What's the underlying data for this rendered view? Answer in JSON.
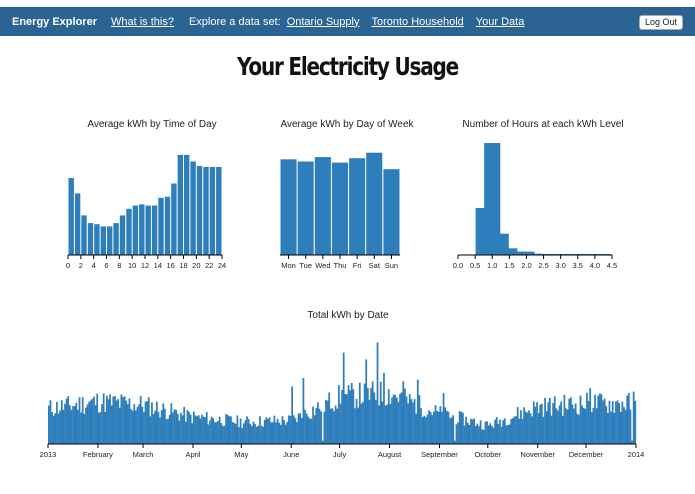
{
  "navbar": {
    "brand": "Energy Explorer",
    "about_link": "What is this?",
    "explore_label": "Explore a data set:",
    "datasets": [
      "Ontario Supply",
      "Toronto Household",
      "Your Data"
    ],
    "logout_label": "Log Out"
  },
  "page": {
    "title": "Your Electricity Usage"
  },
  "colors": {
    "bar": "#2f7ebc",
    "navbar": "#2b6492"
  },
  "chart_data": [
    {
      "type": "bar",
      "title": "Average kWh by Time of Day",
      "x_tick_labels": [
        "0",
        "2",
        "4",
        "6",
        "8",
        "10",
        "12",
        "14",
        "16",
        "18",
        "20",
        "22",
        "24"
      ],
      "categories": [
        0,
        1,
        2,
        3,
        4,
        5,
        6,
        7,
        8,
        9,
        10,
        11,
        12,
        13,
        14,
        15,
        16,
        17,
        18,
        19,
        20,
        21,
        22,
        23
      ],
      "values": [
        0.7,
        0.56,
        0.36,
        0.29,
        0.28,
        0.26,
        0.26,
        0.29,
        0.36,
        0.42,
        0.45,
        0.46,
        0.45,
        0.45,
        0.52,
        0.53,
        0.65,
        0.91,
        0.91,
        0.85,
        0.81,
        0.8,
        0.8,
        0.8
      ],
      "ylim": [
        0,
        1.0
      ],
      "grid": false
    },
    {
      "type": "bar",
      "title": "Average kWh by Day of Week",
      "categories": [
        "Mon",
        "Tue",
        "Wed",
        "Thu",
        "Fri",
        "Sat",
        "Sun"
      ],
      "values": [
        0.87,
        0.85,
        0.89,
        0.84,
        0.88,
        0.93,
        0.78
      ],
      "ylim": [
        0,
        1.0
      ],
      "grid": false
    },
    {
      "type": "bar",
      "title": "Number of Hours at each kWh Level",
      "x_tick_labels": [
        "0.0",
        "0.5",
        "1.0",
        "1.5",
        "2.0",
        "2.5",
        "3.0",
        "3.5",
        "4.0",
        "4.5"
      ],
      "bins_start": [
        0.0,
        0.25,
        0.5,
        0.75,
        1.0,
        1.25,
        1.5,
        1.75,
        2.0,
        2.25,
        2.5,
        2.75,
        3.0,
        3.25,
        3.5,
        3.75,
        4.0,
        4.25
      ],
      "values": [
        0,
        0,
        0.42,
        1.0,
        0.19,
        0.06,
        0.03,
        0.03,
        0.012,
        0.008,
        0.005,
        0.004,
        0.003,
        0.002,
        0.002,
        0.001,
        0.001,
        0
      ],
      "xlim": [
        0,
        4.5
      ],
      "grid": false
    },
    {
      "type": "bar",
      "title": "Total kWh by Date",
      "x_tick_labels": [
        "2013",
        "February",
        "March",
        "April",
        "May",
        "June",
        "July",
        "August",
        "September",
        "October",
        "November",
        "December",
        "2014"
      ],
      "x_tick_dates": [
        "2013-01-01",
        "2013-02-01",
        "2013-03-01",
        "2013-04-01",
        "2013-05-01",
        "2013-06-01",
        "2013-07-01",
        "2013-08-01",
        "2013-09-01",
        "2013-10-01",
        "2013-11-01",
        "2013-12-01",
        "2014-01-01"
      ],
      "x_range": [
        "2013-01-01",
        "2014-01-01"
      ],
      "monthly_typical_kwh": [
        21,
        25,
        23,
        16,
        13,
        14,
        28,
        30,
        18,
        11,
        22,
        24,
        24
      ],
      "peak_days": [
        {
          "date": "2013-06-01",
          "value": 34
        },
        {
          "date": "2013-06-08",
          "value": 39
        },
        {
          "date": "2013-07-03",
          "value": 54
        },
        {
          "date": "2013-07-17",
          "value": 50
        },
        {
          "date": "2013-07-24",
          "value": 60
        },
        {
          "date": "2013-07-28",
          "value": 42
        },
        {
          "date": "2013-08-09",
          "value": 37
        },
        {
          "date": "2013-08-18",
          "value": 38
        },
        {
          "date": "2013-09-03",
          "value": 30
        },
        {
          "date": "2013-12-03",
          "value": 33
        },
        {
          "date": "2013-12-30",
          "value": 31
        }
      ],
      "low_days": [
        {
          "date": "2013-06-20",
          "value": 2
        },
        {
          "date": "2013-09-10",
          "value": 2
        },
        {
          "date": "2013-12-29",
          "value": 2
        }
      ],
      "ylim": [
        0,
        65
      ],
      "grid": false
    }
  ]
}
